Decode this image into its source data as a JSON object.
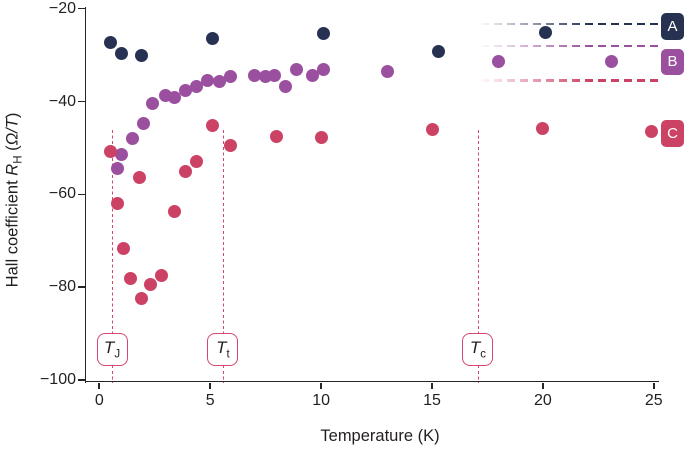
{
  "chart_data": {
    "type": "scatter",
    "title": "",
    "xlabel": "Temperature (K)",
    "ylabel": "Hall coefficient R_H (Ω/T)",
    "ylabel_parts": {
      "prefix": "Hall coefficient ",
      "symbol": "R",
      "symbol_sub": "H",
      "unit_open": " (",
      "unit_italic": "Ω/T",
      "unit_close": ")"
    },
    "xlim": [
      0,
      25
    ],
    "ylim": [
      -100,
      -20
    ],
    "grid": false,
    "legend_position": "right-edge-boxes-with-dashed-asymptote-lines",
    "x_ticks": {
      "values": [
        0,
        5,
        10,
        15,
        20,
        25
      ],
      "labels": [
        "0",
        "5",
        "10",
        "15",
        "20",
        "25"
      ]
    },
    "y_ticks": {
      "values": [
        -100,
        -80,
        -60,
        -40,
        -20
      ],
      "labels": [
        "−100",
        "−80",
        "−60",
        "−40",
        "−20"
      ]
    },
    "series": [
      {
        "name": "A",
        "color": "#273253",
        "asymptote": -23.3,
        "points": [
          [
            0.5,
            -27.3
          ],
          [
            1.0,
            -29.6
          ],
          [
            1.9,
            -30.0
          ],
          [
            5.1,
            -26.4
          ],
          [
            10.1,
            -25.4
          ],
          [
            15.3,
            -29.2
          ],
          [
            20.1,
            -25.2
          ]
        ]
      },
      {
        "name": "B",
        "color": "#9a4f9f",
        "asymptote": -28.0,
        "points": [
          [
            0.8,
            -54.4
          ],
          [
            1.0,
            -51.4
          ],
          [
            1.5,
            -47.9
          ],
          [
            2.0,
            -44.7
          ],
          [
            2.4,
            -40.4
          ],
          [
            3.0,
            -38.8
          ],
          [
            3.4,
            -39.1
          ],
          [
            3.9,
            -37.7
          ],
          [
            4.4,
            -36.7
          ],
          [
            4.9,
            -35.5
          ],
          [
            5.4,
            -35.8
          ],
          [
            5.9,
            -34.7
          ],
          [
            7.0,
            -34.5
          ],
          [
            7.5,
            -34.7
          ],
          [
            7.9,
            -34.5
          ],
          [
            8.4,
            -36.8
          ],
          [
            8.9,
            -33.2
          ],
          [
            9.6,
            -34.3
          ],
          [
            10.1,
            -33.1
          ],
          [
            13.0,
            -33.6
          ],
          [
            18.0,
            -31.4
          ],
          [
            23.1,
            -31.3
          ]
        ]
      },
      {
        "name": "C",
        "color": "#cc4264",
        "asymptote": -35.5,
        "points": [
          [
            0.5,
            -50.8
          ],
          [
            0.8,
            -61.9
          ],
          [
            1.1,
            -71.6
          ],
          [
            1.4,
            -78.2
          ],
          [
            1.8,
            -56.4
          ],
          [
            1.9,
            -82.4
          ],
          [
            2.3,
            -79.3
          ],
          [
            2.8,
            -77.4
          ],
          [
            3.4,
            -63.6
          ],
          [
            3.9,
            -55.0
          ],
          [
            4.4,
            -53.0
          ],
          [
            5.1,
            -45.1
          ],
          [
            5.9,
            -49.5
          ],
          [
            8.0,
            -47.6
          ],
          [
            10.0,
            -47.7
          ],
          [
            15.0,
            -46.1
          ],
          [
            20.0,
            -45.8
          ],
          [
            24.9,
            -46.5
          ]
        ]
      }
    ],
    "threshold_lines": [
      {
        "symbol": "T",
        "sub": "J",
        "x": 0.6
      },
      {
        "symbol": "T",
        "sub": "t",
        "x": 5.6
      },
      {
        "symbol": "T",
        "sub": "c",
        "x": 17.1
      }
    ],
    "threshold_color": "#d6476d",
    "axis_color": "#262626"
  }
}
